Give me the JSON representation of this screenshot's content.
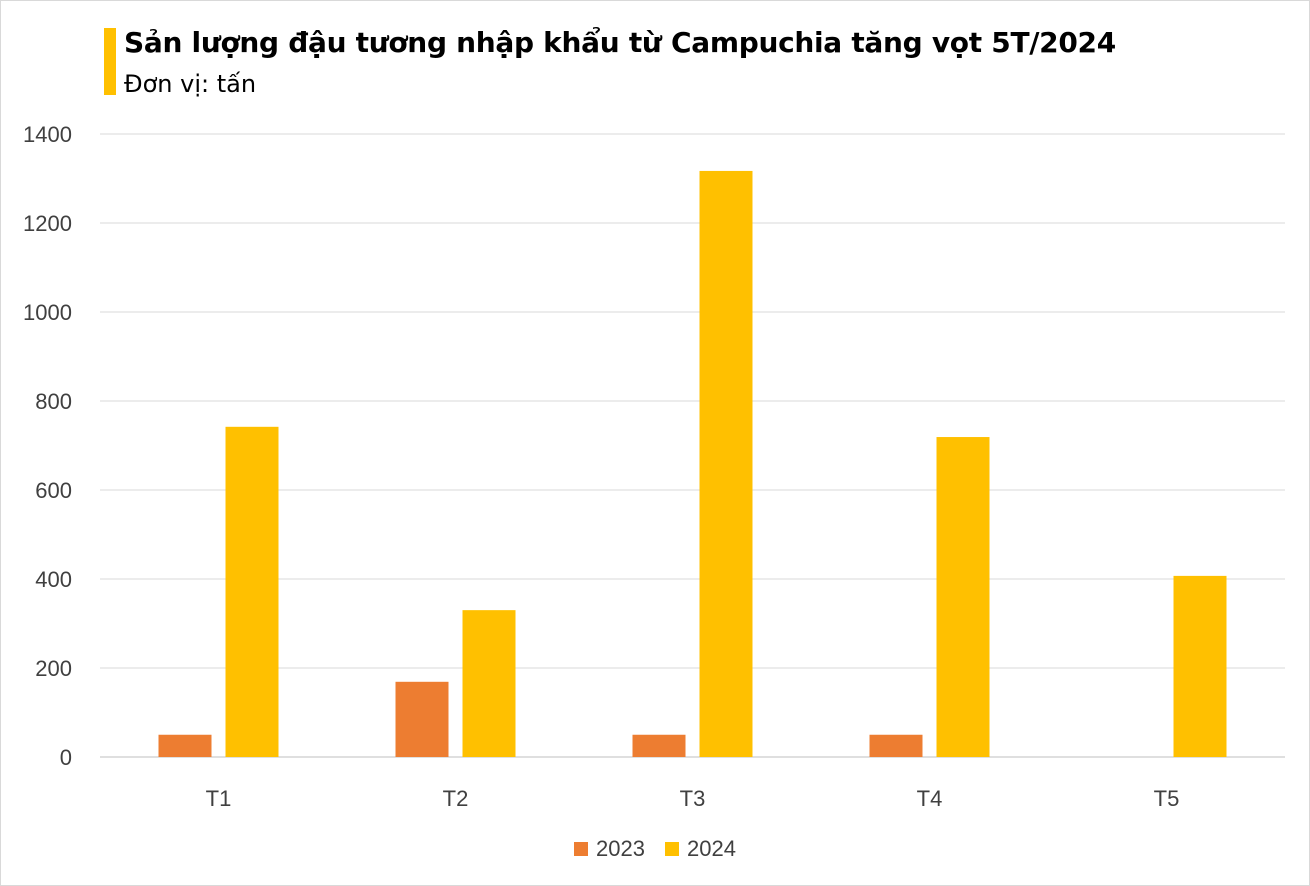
{
  "chart_data": {
    "type": "bar",
    "title": "Sản lượng đậu tương nhập khẩu từ Campuchia tăng vọt 5T/2024",
    "subtitle": "Đơn vị: tấn",
    "categories": [
      "T1",
      "T2",
      "T3",
      "T4",
      "T5"
    ],
    "series": [
      {
        "name": "2023",
        "color": "#ed7d31",
        "values": [
          50,
          169,
          50,
          50,
          0
        ]
      },
      {
        "name": "2024",
        "color": "#ffc000",
        "values": [
          742,
          330,
          1317,
          719,
          407
        ]
      }
    ],
    "ylim": [
      0,
      1400
    ],
    "yticks": [
      0,
      200,
      400,
      600,
      800,
      1000,
      1200,
      1400
    ],
    "grid": true,
    "legend_position": "bottom",
    "accent_color": "#ffc000"
  }
}
